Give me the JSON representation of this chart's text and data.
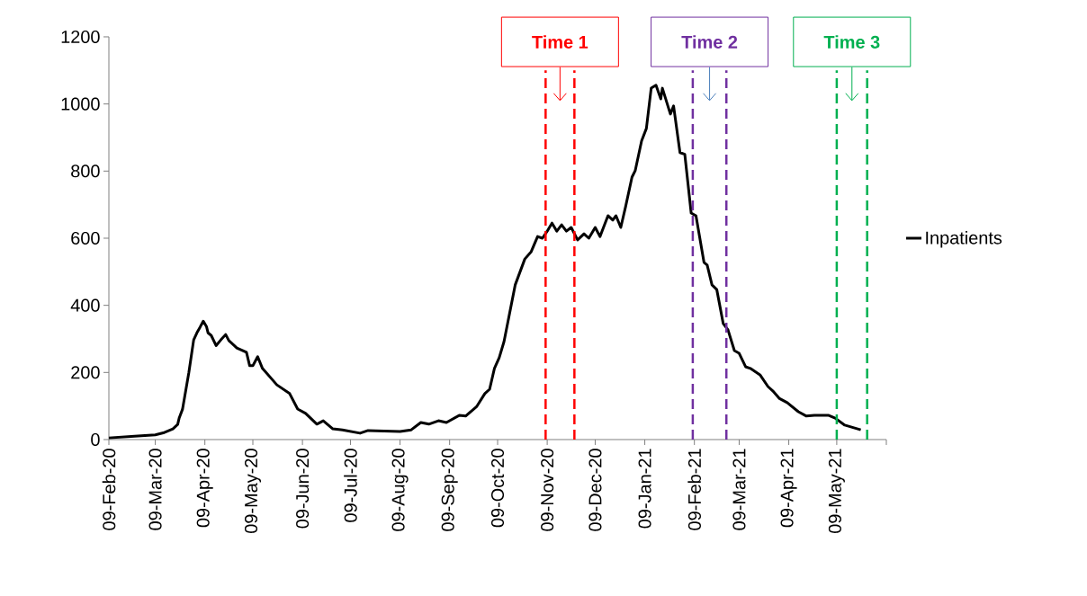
{
  "chart_data": {
    "type": "line",
    "x": [
      "2020-02-09",
      "2020-02-25",
      "2020-03-09",
      "2020-03-14",
      "2020-03-20",
      "2020-03-23",
      "2020-03-24",
      "2020-03-26",
      "2020-03-30",
      "2020-04-02",
      "2020-04-04",
      "2020-04-06",
      "2020-04-08",
      "2020-04-10",
      "2020-04-11",
      "2020-04-13",
      "2020-04-16",
      "2020-04-19",
      "2020-04-22",
      "2020-04-24",
      "2020-04-29",
      "2020-05-05",
      "2020-05-07",
      "2020-05-09",
      "2020-05-12",
      "2020-05-15",
      "2020-05-24",
      "2020-06-01",
      "2020-06-06",
      "2020-06-11",
      "2020-06-18",
      "2020-06-22",
      "2020-06-28",
      "2020-07-04",
      "2020-07-15",
      "2020-07-20",
      "2020-08-09",
      "2020-08-16",
      "2020-08-22",
      "2020-08-27",
      "2020-09-02",
      "2020-09-07",
      "2020-09-15",
      "2020-09-19",
      "2020-09-26",
      "2020-10-01",
      "2020-10-04",
      "2020-10-07",
      "2020-10-10",
      "2020-10-13",
      "2020-10-20",
      "2020-10-26",
      "2020-10-30",
      "2020-11-03",
      "2020-11-06",
      "2020-11-09",
      "2020-11-12",
      "2020-11-15",
      "2020-11-18",
      "2020-11-21",
      "2020-11-24",
      "2020-11-28",
      "2020-12-02",
      "2020-12-05",
      "2020-12-09",
      "2020-12-12",
      "2020-12-17",
      "2020-12-20",
      "2020-12-22",
      "2020-12-25",
      "2020-12-28",
      "2021-01-01",
      "2021-01-03",
      "2021-01-07",
      "2021-01-10",
      "2021-01-13",
      "2021-01-16",
      "2021-01-19",
      "2021-01-20",
      "2021-01-25",
      "2021-01-27",
      "2021-01-31",
      "2021-02-03",
      "2021-02-07",
      "2021-02-10",
      "2021-02-15",
      "2021-02-17",
      "2021-02-20",
      "2021-02-23",
      "2021-02-27",
      "2021-03-02",
      "2021-03-06",
      "2021-03-09",
      "2021-03-13",
      "2021-03-16",
      "2021-03-22",
      "2021-03-27",
      "2021-03-30",
      "2021-04-03",
      "2021-04-08",
      "2021-04-15",
      "2021-04-20",
      "2021-04-25",
      "2021-05-04",
      "2021-05-08",
      "2021-05-14",
      "2021-05-24"
    ],
    "series": [
      {
        "name": "Inpatients",
        "color": "#000000",
        "values": [
          5,
          10,
          14,
          20,
          32,
          45,
          65,
          90,
          200,
          297,
          318,
          335,
          353,
          337,
          318,
          310,
          280,
          297,
          313,
          295,
          273,
          260,
          220,
          220,
          247,
          212,
          163,
          137,
          91,
          78,
          46,
          56,
          32,
          29,
          19,
          27,
          24,
          29,
          51,
          46,
          56,
          51,
          72,
          70,
          99,
          137,
          150,
          212,
          244,
          292,
          461,
          538,
          560,
          605,
          600,
          621,
          645,
          621,
          640,
          621,
          632,
          595,
          613,
          600,
          632,
          605,
          667,
          654,
          667,
          632,
          694,
          782,
          801,
          890,
          927,
          1047,
          1056,
          1015,
          1047,
          970,
          994,
          855,
          850,
          675,
          667,
          528,
          520,
          461,
          447,
          346,
          327,
          265,
          257,
          217,
          212,
          193,
          158,
          145,
          123,
          110,
          83,
          70,
          72,
          72,
          64,
          43,
          29
        ]
      }
    ],
    "xlim": [
      "2020-02-09",
      "2021-06-09"
    ],
    "xticks": [
      {
        "value": "2020-02-09",
        "label": "09-Feb-20"
      },
      {
        "value": "2020-03-09",
        "label": "09-Mar-20"
      },
      {
        "value": "2020-04-09",
        "label": "09-Apr-20"
      },
      {
        "value": "2020-05-09",
        "label": "09-May-20"
      },
      {
        "value": "2020-06-09",
        "label": "09-Jun-20"
      },
      {
        "value": "2020-07-09",
        "label": "09-Jul-20"
      },
      {
        "value": "2020-08-09",
        "label": "09-Aug-20"
      },
      {
        "value": "2020-09-09",
        "label": "09-Sep-20"
      },
      {
        "value": "2020-10-09",
        "label": "09-Oct-20"
      },
      {
        "value": "2020-11-09",
        "label": "09-Nov-20"
      },
      {
        "value": "2020-12-09",
        "label": "09-Dec-20"
      },
      {
        "value": "2021-01-09",
        "label": "09-Jan-21"
      },
      {
        "value": "2021-02-09",
        "label": "09-Feb-21"
      },
      {
        "value": "2021-03-09",
        "label": "09-Mar-21"
      },
      {
        "value": "2021-04-09",
        "label": "09-Apr-21"
      },
      {
        "value": "2021-05-09",
        "label": "09-May-21"
      },
      {
        "value": "2021-06-09",
        "label": null
      }
    ],
    "ylim": [
      0,
      1200
    ],
    "yticks": [
      0,
      200,
      400,
      600,
      800,
      1000,
      1200
    ],
    "ref_lines": [
      {
        "axis": "x",
        "value": "2020-11-08",
        "color": "#ff0000",
        "line_style": "dashed"
      },
      {
        "axis": "x",
        "value": "2020-11-26",
        "color": "#ff0000",
        "line_style": "dashed"
      },
      {
        "axis": "x",
        "value": "2021-02-08",
        "color": "#7030a0",
        "line_style": "dashed"
      },
      {
        "axis": "x",
        "value": "2021-03-01",
        "color": "#7030a0",
        "line_style": "dashed"
      },
      {
        "axis": "x",
        "value": "2021-05-09",
        "color": "#00b050",
        "line_style": "dashed"
      },
      {
        "axis": "x",
        "value": "2021-05-28",
        "color": "#00b050",
        "line_style": "dashed"
      }
    ],
    "annotations": [
      "Time 1",
      "Time 2",
      "Time 3"
    ],
    "grid": false,
    "legend": "right",
    "marker": "none",
    "line_style": "solid"
  }
}
